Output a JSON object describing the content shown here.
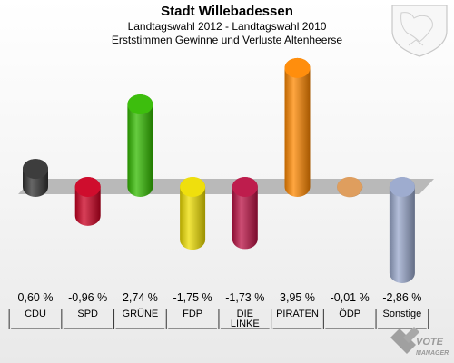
{
  "header": {
    "title": "Stadt Willebadessen",
    "subtitle": "Landtagswahl 2012 - Landtagswahl 2010",
    "subtitle2": "Erststimmen Gewinne und Verluste Altenheerse"
  },
  "watermark": {
    "line1": "VOTE",
    "line2": "MANAGER"
  },
  "chart_data": {
    "type": "bar",
    "title": "Stadt Willebadessen",
    "subtitle": "Landtagswahl 2012 - Landtagswahl 2010 / Erststimmen Gewinne und Verluste Altenheerse",
    "categories": [
      "CDU",
      "SPD",
      "GRÜNE",
      "FDP",
      "DIE LINKE",
      "PIRATEN",
      "ÖDP",
      "Sonstige"
    ],
    "category_lines": [
      [
        "CDU"
      ],
      [
        "SPD"
      ],
      [
        "GRÜNE"
      ],
      [
        "FDP"
      ],
      [
        "DIE",
        "LINKE"
      ],
      [
        "PIRATEN"
      ],
      [
        "ÖDP"
      ],
      [
        "Sonstige"
      ]
    ],
    "values": [
      0.6,
      -0.96,
      2.74,
      -1.75,
      -1.73,
      3.95,
      -0.01,
      -2.86
    ],
    "labels": [
      "0,60 %",
      "-0,96 %",
      "2,74 %",
      "-1,75 %",
      "-1,73 %",
      "3,95 %",
      "-0,01 %",
      "-2,86 %"
    ],
    "colors": [
      "#333333",
      "#cc0022",
      "#33bb00",
      "#eedd00",
      "#bb1144",
      "#ff8800",
      "#dd9955",
      "#99a8cc"
    ],
    "ylim": [
      -3,
      4.2
    ],
    "xlabel": "",
    "ylabel": ""
  }
}
